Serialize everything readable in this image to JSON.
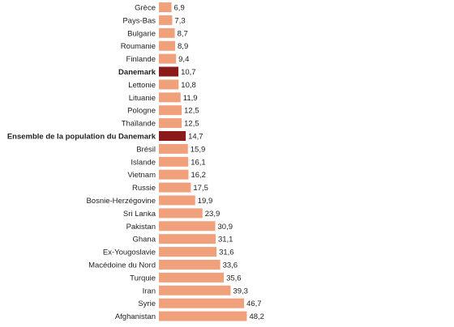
{
  "chart_data": {
    "type": "bar",
    "orientation": "horizontal",
    "title": "",
    "xlabel": "",
    "ylabel": "",
    "xlim": [
      0,
      50
    ],
    "grid": false,
    "legend": "none",
    "colors": {
      "default": "#f0a07a",
      "highlight": "#8b1a1a"
    },
    "highlighted": [
      "Danemark",
      "Ensemble de la population du Danemark"
    ],
    "categories": [
      "Grèce",
      "Pays-Bas",
      "Bulgarie",
      "Roumanie",
      "Finlande",
      "Danemark",
      "Lettonie",
      "Lituanie",
      "Pologne",
      "Thaïlande",
      "Ensemble de la population du Danemark",
      "Brésil",
      "Islande",
      "Vietnam",
      "Russie",
      "Bosnie-Herzégovine",
      "Sri Lanka",
      "Pakistan",
      "Ghana",
      "Ex-Yougoslavie",
      "Macédoine du Nord",
      "Turquie",
      "Iran",
      "Syrie",
      "Afghanistan"
    ],
    "values": [
      6.9,
      7.3,
      8.7,
      8.9,
      9.4,
      10.7,
      10.8,
      11.9,
      12.5,
      12.5,
      14.7,
      15.9,
      16.1,
      16.2,
      17.5,
      19.9,
      23.9,
      30.9,
      31.1,
      31.6,
      33.6,
      35.6,
      39.3,
      46.7,
      48.2
    ],
    "value_labels": [
      "6,9",
      "7,3",
      "8,7",
      "8,9",
      "9,4",
      "10,7",
      "10,8",
      "11,9",
      "12,5",
      "12,5",
      "14,7",
      "15,9",
      "16,1",
      "16,2",
      "17,5",
      "19,9",
      "23,9",
      "30,9",
      "31,1",
      "31,6",
      "33,6",
      "35,6",
      "39,3",
      "46,7",
      "48,2"
    ]
  }
}
